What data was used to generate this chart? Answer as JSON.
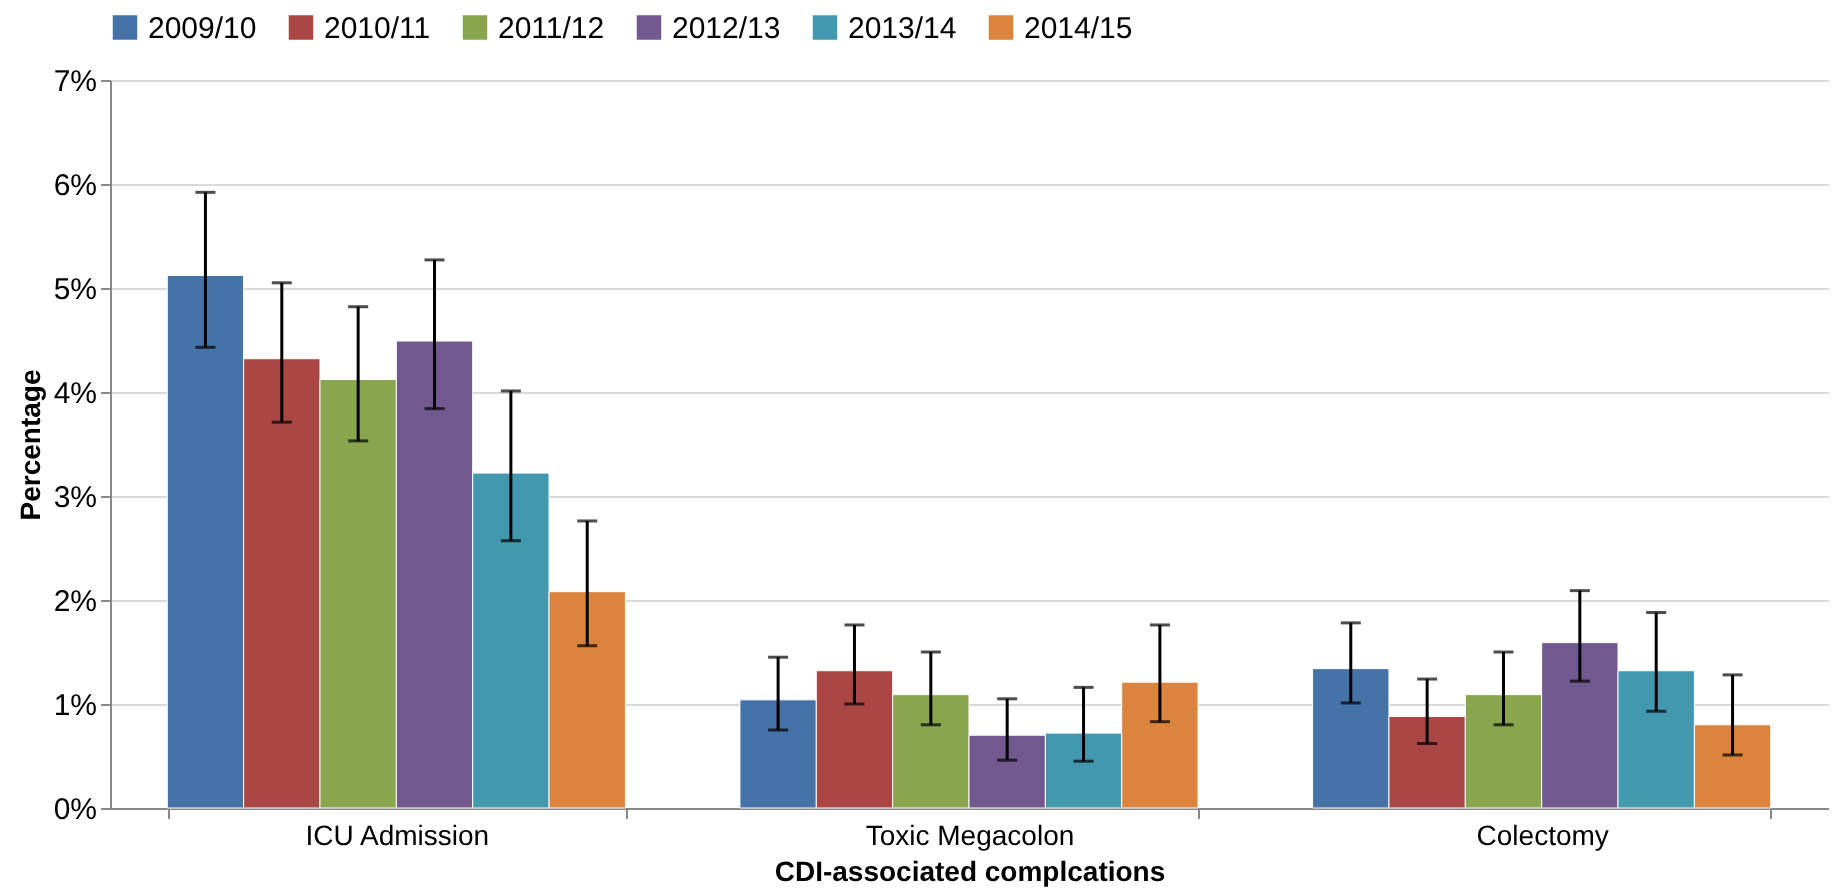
{
  "chart_data": {
    "type": "bar",
    "xlabel": "CDI-associated complcations",
    "ylabel": "Percentage",
    "categories": [
      "ICU Admission",
      "Toxic Megacolon",
      "Colectomy"
    ],
    "series": [
      {
        "name": "2009/10",
        "color": "#4572a7",
        "values": [
          5.12,
          1.04,
          1.34
        ],
        "errors": [
          [
            4.43,
            5.92
          ],
          [
            0.75,
            1.45
          ],
          [
            1.01,
            1.78
          ]
        ]
      },
      {
        "name": "2010/11",
        "color": "#aa4643",
        "values": [
          4.32,
          1.32,
          0.88
        ],
        "errors": [
          [
            3.71,
            5.05
          ],
          [
            1.0,
            1.76
          ],
          [
            0.62,
            1.24
          ]
        ]
      },
      {
        "name": "2011/12",
        "color": "#89a54e",
        "values": [
          4.12,
          1.09,
          1.09
        ],
        "errors": [
          [
            3.53,
            4.82
          ],
          [
            0.8,
            1.5
          ],
          [
            0.8,
            1.5
          ]
        ]
      },
      {
        "name": "2012/13",
        "color": "#71588f",
        "values": [
          4.49,
          0.7,
          1.59
        ],
        "errors": [
          [
            3.84,
            5.27
          ],
          [
            0.46,
            1.05
          ],
          [
            1.22,
            2.09
          ]
        ]
      },
      {
        "name": "2013/14",
        "color": "#4198af",
        "values": [
          3.22,
          0.72,
          1.32
        ],
        "errors": [
          [
            2.57,
            4.01
          ],
          [
            0.45,
            1.16
          ],
          [
            0.93,
            1.88
          ]
        ]
      },
      {
        "name": "2014/15",
        "color": "#db843d",
        "values": [
          2.08,
          1.21,
          0.8
        ],
        "errors": [
          [
            1.56,
            2.76
          ],
          [
            0.83,
            1.76
          ],
          [
            0.51,
            1.28
          ]
        ]
      }
    ],
    "ylim": [
      0,
      7
    ],
    "yticks": [
      {
        "value": 0,
        "label": "0%"
      },
      {
        "value": 1,
        "label": "1%"
      },
      {
        "value": 2,
        "label": "2%"
      },
      {
        "value": 3,
        "label": "3%"
      },
      {
        "value": 4,
        "label": "4%"
      },
      {
        "value": 5,
        "label": "5%"
      },
      {
        "value": 6,
        "label": "6%"
      },
      {
        "value": 7,
        "label": "7%"
      }
    ],
    "grid": "y",
    "legend": "top"
  }
}
